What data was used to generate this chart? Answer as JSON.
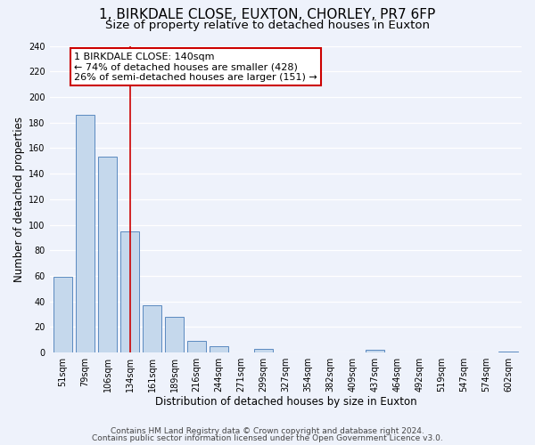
{
  "title": "1, BIRKDALE CLOSE, EUXTON, CHORLEY, PR7 6FP",
  "subtitle": "Size of property relative to detached houses in Euxton",
  "xlabel": "Distribution of detached houses by size in Euxton",
  "ylabel": "Number of detached properties",
  "categories": [
    "51sqm",
    "79sqm",
    "106sqm",
    "134sqm",
    "161sqm",
    "189sqm",
    "216sqm",
    "244sqm",
    "271sqm",
    "299sqm",
    "327sqm",
    "354sqm",
    "382sqm",
    "409sqm",
    "437sqm",
    "464sqm",
    "492sqm",
    "519sqm",
    "547sqm",
    "574sqm",
    "602sqm"
  ],
  "values": [
    59,
    186,
    153,
    95,
    37,
    28,
    9,
    5,
    0,
    3,
    0,
    0,
    0,
    0,
    2,
    0,
    0,
    0,
    0,
    0,
    1
  ],
  "bar_color": "#c5d8ec",
  "bar_edge_color": "#5b8ac0",
  "vline_x": 3,
  "vline_color": "#cc0000",
  "annotation_line1": "1 BIRKDALE CLOSE: 140sqm",
  "annotation_line2": "← 74% of detached houses are smaller (428)",
  "annotation_line3": "26% of semi-detached houses are larger (151) →",
  "annotation_box_facecolor": "#ffffff",
  "annotation_box_edgecolor": "#cc0000",
  "ylim": [
    0,
    240
  ],
  "yticks": [
    0,
    20,
    40,
    60,
    80,
    100,
    120,
    140,
    160,
    180,
    200,
    220,
    240
  ],
  "footer_line1": "Contains HM Land Registry data © Crown copyright and database right 2024.",
  "footer_line2": "Contains public sector information licensed under the Open Government Licence v3.0.",
  "background_color": "#eef2fb",
  "grid_color": "#ffffff",
  "title_fontsize": 11,
  "subtitle_fontsize": 9.5,
  "axis_label_fontsize": 8.5,
  "tick_fontsize": 7,
  "annotation_fontsize": 8,
  "footer_fontsize": 6.5
}
